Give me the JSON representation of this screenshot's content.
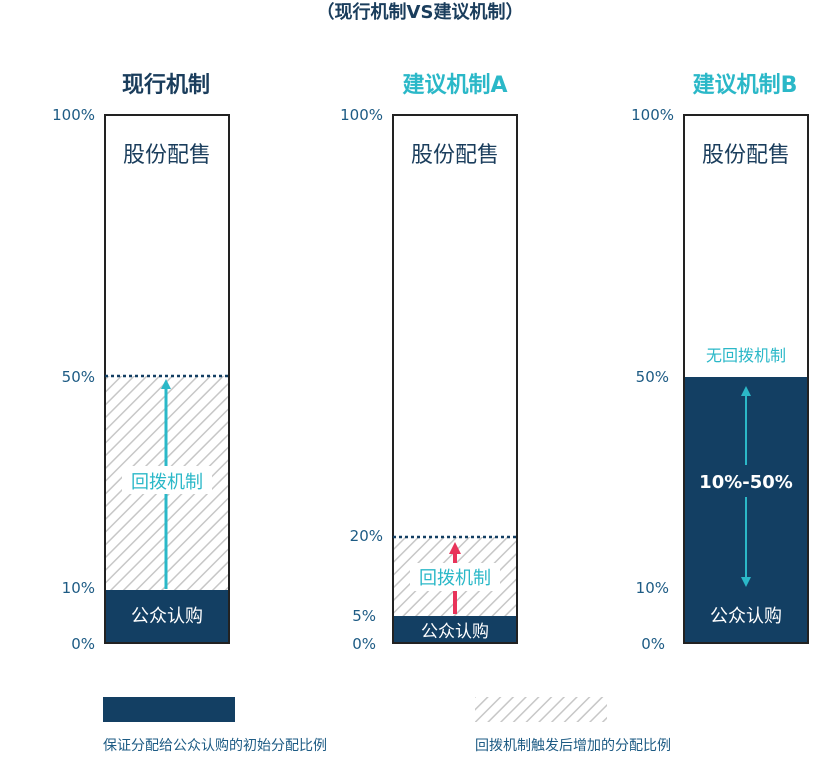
{
  "title": "（现行机制VS建议机制）",
  "colors": {
    "navy": "#133f63",
    "teal": "#2bb8c8",
    "red": "#e8345a",
    "axis_text": "#1d5b84",
    "border": "#222222"
  },
  "panels": [
    {
      "title": "现行机制",
      "ticks": [
        "100%",
        "50%",
        "10%",
        "0%"
      ],
      "top_label": "股份配售",
      "mid_label": "回拨机制",
      "bottom_label": "公众认购",
      "public_share": 10,
      "clawback_max": 50
    },
    {
      "title": "建议机制A",
      "ticks": [
        "100%",
        "20%",
        "5%",
        "0%"
      ],
      "top_label": "股份配售",
      "mid_label": "回拨机制",
      "bottom_label": "公众认购",
      "public_share": 5,
      "clawback_max": 20
    },
    {
      "title": "建议机制B",
      "ticks": [
        "100%",
        "50%",
        "10%",
        "0%"
      ],
      "top_label": "股份配售",
      "above_label": "无回拨机制",
      "range_label": "10%-50%",
      "bottom_label": "公众认购",
      "public_share": 50
    }
  ],
  "legend": {
    "solid_label": "保证分配给公众认购的初始分配比例",
    "hatched_label": "回拨机制触发后增加的分配比例"
  }
}
